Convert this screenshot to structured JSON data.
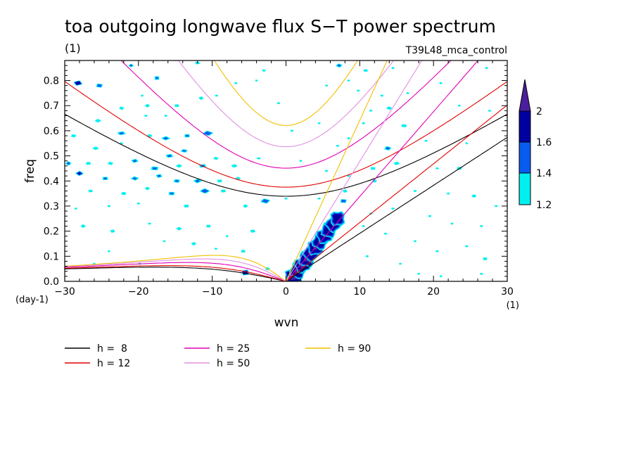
{
  "chart_data": {
    "type": "heatmap",
    "title": "toa outgoing longwave flux S−T power spectrum",
    "subtitle_left": "(1)",
    "subtitle_right": "T39L48_mca_control",
    "xlabel": "wvn",
    "ylabel": "freq",
    "x_unit_label": "(1)",
    "y_unit_label": "(day-1)",
    "xlim": [
      -30,
      30
    ],
    "ylim": [
      0,
      0.88
    ],
    "x_ticks": [
      -30,
      -20,
      -10,
      0,
      10,
      20,
      30
    ],
    "x_tick_labels": [
      "−30",
      "−20",
      "−10",
      "0",
      "10",
      "20",
      "30"
    ],
    "y_ticks": [
      0.0,
      0.1,
      0.2,
      0.3,
      0.4,
      0.5,
      0.6,
      0.7,
      0.8
    ],
    "y_tick_labels": [
      "0.0",
      "0.1",
      "0.2",
      "0.3",
      "0.4",
      "0.5",
      "0.6",
      "0.7",
      "0.8"
    ],
    "colorbar": {
      "levels": [
        1.2,
        1.4,
        1.6,
        2
      ],
      "level_labels": [
        "1.2",
        "1.4",
        "1.6",
        "2"
      ],
      "colors": [
        "#00f0f0",
        "#0a5cf0",
        "#0000a0",
        "#4b1e9e"
      ]
    },
    "dispersion_curves": {
      "equivalent_depths": [
        8,
        12,
        25,
        50,
        90
      ],
      "colors": [
        "#000000",
        "#e00000",
        "#e000b4",
        "#e090e0",
        "#f0c000"
      ],
      "legend": [
        "h =  8",
        "h = 12",
        "h = 25",
        "h = 50",
        "h = 90"
      ]
    },
    "kelvin_region": {
      "x_range": [
        1,
        7
      ],
      "freq_range": [
        0.02,
        0.25
      ],
      "peak_value": 2.2
    },
    "blobs": [
      [
        -28.2,
        0.79,
        0.9,
        0.016,
        1.9
      ],
      [
        -25.3,
        0.78,
        0.9,
        0.016,
        1.6
      ],
      [
        -21.0,
        0.86,
        0.7,
        0.014,
        1.5
      ],
      [
        -17.5,
        0.81,
        0.8,
        0.018,
        1.5
      ],
      [
        -19.5,
        0.74,
        0.7,
        0.014,
        1.3
      ],
      [
        -12.0,
        0.87,
        0.9,
        0.014,
        1.4
      ],
      [
        -22.3,
        0.69,
        0.8,
        0.016,
        1.4
      ],
      [
        -18.8,
        0.7,
        0.8,
        0.016,
        1.4
      ],
      [
        -14.8,
        0.7,
        0.8,
        0.016,
        1.4
      ],
      [
        -25.5,
        0.64,
        1.0,
        0.016,
        1.4
      ],
      [
        -19.0,
        0.66,
        0.8,
        0.014,
        1.3
      ],
      [
        -16.3,
        0.66,
        0.8,
        0.014,
        1.3
      ],
      [
        -11.5,
        0.73,
        0.8,
        0.016,
        1.4
      ],
      [
        -9.4,
        0.74,
        0.8,
        0.014,
        1.3
      ],
      [
        -6.8,
        0.79,
        0.8,
        0.014,
        1.3
      ],
      [
        -4.0,
        0.8,
        0.7,
        0.014,
        1.3
      ],
      [
        -28.8,
        0.58,
        0.9,
        0.016,
        1.4
      ],
      [
        -22.3,
        0.59,
        1.2,
        0.016,
        1.5
      ],
      [
        -18.5,
        0.58,
        0.9,
        0.016,
        1.4
      ],
      [
        -16.3,
        0.57,
        1.2,
        0.016,
        1.5
      ],
      [
        -13.4,
        0.58,
        0.9,
        0.016,
        1.5
      ],
      [
        -10.6,
        0.59,
        1.3,
        0.018,
        1.6
      ],
      [
        -15.8,
        0.5,
        1.1,
        0.016,
        1.5
      ],
      [
        -13.8,
        0.52,
        1.0,
        0.014,
        1.5
      ],
      [
        -25.8,
        0.53,
        1.0,
        0.016,
        1.4
      ],
      [
        -22.3,
        0.55,
        0.8,
        0.014,
        1.3
      ],
      [
        -29.5,
        0.47,
        0.8,
        0.018,
        1.5
      ],
      [
        -26.8,
        0.47,
        0.9,
        0.016,
        1.4
      ],
      [
        -23.8,
        0.47,
        0.9,
        0.016,
        1.4
      ],
      [
        -20.5,
        0.48,
        1.0,
        0.016,
        1.5
      ],
      [
        -17.8,
        0.45,
        1.2,
        0.018,
        1.5
      ],
      [
        -14.5,
        0.46,
        1.0,
        0.016,
        1.4
      ],
      [
        -11.3,
        0.46,
        1.1,
        0.016,
        1.5
      ],
      [
        -9.5,
        0.49,
        0.9,
        0.014,
        1.4
      ],
      [
        -7.0,
        0.46,
        1.0,
        0.016,
        1.4
      ],
      [
        -3.7,
        0.49,
        1.0,
        0.014,
        1.3
      ],
      [
        -28.0,
        0.43,
        0.9,
        0.016,
        1.7
      ],
      [
        -24.5,
        0.41,
        0.9,
        0.016,
        1.5
      ],
      [
        -20.5,
        0.41,
        1.1,
        0.016,
        1.5
      ],
      [
        -17.2,
        0.42,
        0.9,
        0.016,
        1.5
      ],
      [
        -14.8,
        0.4,
        1.0,
        0.016,
        1.5
      ],
      [
        -12.0,
        0.4,
        1.1,
        0.018,
        1.5
      ],
      [
        -9.0,
        0.4,
        0.9,
        0.016,
        1.4
      ],
      [
        -6.5,
        0.41,
        0.8,
        0.016,
        1.4
      ],
      [
        -26.5,
        0.36,
        0.8,
        0.014,
        1.4
      ],
      [
        -22.0,
        0.35,
        0.9,
        0.016,
        1.4
      ],
      [
        -18.8,
        0.37,
        0.8,
        0.016,
        1.4
      ],
      [
        -15.5,
        0.35,
        1.0,
        0.016,
        1.5
      ],
      [
        -11.0,
        0.36,
        1.2,
        0.018,
        1.6
      ],
      [
        -8.5,
        0.36,
        0.9,
        0.016,
        1.4
      ],
      [
        -2.8,
        0.32,
        1.2,
        0.018,
        1.6
      ],
      [
        -5.5,
        0.3,
        0.8,
        0.016,
        1.4
      ],
      [
        -24.0,
        0.3,
        0.8,
        0.014,
        1.3
      ],
      [
        -20.0,
        0.31,
        0.8,
        0.014,
        1.3
      ],
      [
        -13.5,
        0.3,
        0.9,
        0.016,
        1.4
      ],
      [
        -27.5,
        0.22,
        0.8,
        0.016,
        1.4
      ],
      [
        -23.5,
        0.2,
        0.8,
        0.016,
        1.4
      ],
      [
        -18.5,
        0.23,
        0.8,
        0.014,
        1.3
      ],
      [
        -14.5,
        0.21,
        0.9,
        0.016,
        1.4
      ],
      [
        -10.5,
        0.22,
        0.8,
        0.016,
        1.4
      ],
      [
        -8.0,
        0.18,
        0.7,
        0.014,
        1.3
      ],
      [
        -4.5,
        0.2,
        0.9,
        0.016,
        1.4
      ],
      [
        -16.5,
        0.16,
        0.7,
        0.014,
        1.3
      ],
      [
        -12.5,
        0.15,
        0.8,
        0.016,
        1.4
      ],
      [
        -5.8,
        0.12,
        0.8,
        0.016,
        1.4
      ],
      [
        -9.5,
        0.13,
        0.7,
        0.014,
        1.3
      ],
      [
        -5.5,
        0.035,
        0.9,
        0.02,
        1.8
      ],
      [
        -2.5,
        0.05,
        0.8,
        0.016,
        1.4
      ],
      [
        -19.8,
        0.07,
        0.7,
        0.014,
        1.3
      ],
      [
        -26.0,
        0.07,
        0.7,
        0.014,
        1.3
      ],
      [
        -24.0,
        0.12,
        0.7,
        0.014,
        1.3
      ],
      [
        -28.5,
        0.29,
        0.7,
        0.014,
        1.3
      ],
      [
        -3.0,
        0.84,
        0.9,
        0.016,
        1.3
      ],
      [
        -1.0,
        0.71,
        0.8,
        0.014,
        1.3
      ],
      [
        0.8,
        0.6,
        0.8,
        0.014,
        1.3
      ],
      [
        2.0,
        0.48,
        0.7,
        0.014,
        1.3
      ],
      [
        0.0,
        0.33,
        0.8,
        0.014,
        1.3
      ],
      [
        7.2,
        0.86,
        0.9,
        0.016,
        1.5
      ],
      [
        10.8,
        0.84,
        0.8,
        0.014,
        1.4
      ],
      [
        8.5,
        0.8,
        0.7,
        0.014,
        1.3
      ],
      [
        14.5,
        0.85,
        0.8,
        0.014,
        1.3
      ],
      [
        5.5,
        0.78,
        0.7,
        0.014,
        1.3
      ],
      [
        9.8,
        0.76,
        0.8,
        0.014,
        1.3
      ],
      [
        13.0,
        0.74,
        0.8,
        0.014,
        1.3
      ],
      [
        16.5,
        0.75,
        0.7,
        0.014,
        1.3
      ],
      [
        21.0,
        0.79,
        0.8,
        0.014,
        1.3
      ],
      [
        23.5,
        0.7,
        0.7,
        0.014,
        1.3
      ],
      [
        27.2,
        0.85,
        0.8,
        0.014,
        1.3
      ],
      [
        27.6,
        0.68,
        0.8,
        0.014,
        1.3
      ],
      [
        14.0,
        0.69,
        0.9,
        0.016,
        1.4
      ],
      [
        11.5,
        0.68,
        0.8,
        0.014,
        1.3
      ],
      [
        16.0,
        0.62,
        1.0,
        0.016,
        1.4
      ],
      [
        10.5,
        0.63,
        0.8,
        0.014,
        1.3
      ],
      [
        4.5,
        0.63,
        0.7,
        0.014,
        1.3
      ],
      [
        8.5,
        0.57,
        0.8,
        0.014,
        1.3
      ],
      [
        7.0,
        0.54,
        0.8,
        0.014,
        1.3
      ],
      [
        13.8,
        0.53,
        1.0,
        0.018,
        1.5
      ],
      [
        15.0,
        0.47,
        1.0,
        0.016,
        1.4
      ],
      [
        11.8,
        0.45,
        0.9,
        0.016,
        1.4
      ],
      [
        12.0,
        0.4,
        0.8,
        0.016,
        1.4
      ],
      [
        8.5,
        0.42,
        0.8,
        0.014,
        1.3
      ],
      [
        5.5,
        0.44,
        0.8,
        0.014,
        1.3
      ],
      [
        8.0,
        0.36,
        0.8,
        0.016,
        1.4
      ],
      [
        7.8,
        0.32,
        0.9,
        0.016,
        1.6
      ],
      [
        4.5,
        0.33,
        0.8,
        0.014,
        1.3
      ],
      [
        11.5,
        0.27,
        0.8,
        0.014,
        1.3
      ],
      [
        19.0,
        0.56,
        0.8,
        0.014,
        1.3
      ],
      [
        20.5,
        0.45,
        0.8,
        0.014,
        1.3
      ],
      [
        23.5,
        0.45,
        0.9,
        0.016,
        1.4
      ],
      [
        24.5,
        0.55,
        0.7,
        0.014,
        1.3
      ],
      [
        17.5,
        0.36,
        0.8,
        0.014,
        1.3
      ],
      [
        22.0,
        0.35,
        0.8,
        0.014,
        1.3
      ],
      [
        25.5,
        0.34,
        0.8,
        0.016,
        1.4
      ],
      [
        28.5,
        0.3,
        0.8,
        0.014,
        1.3
      ],
      [
        14.5,
        0.29,
        0.8,
        0.014,
        1.3
      ],
      [
        19.5,
        0.26,
        0.8,
        0.014,
        1.3
      ],
      [
        22.5,
        0.23,
        0.7,
        0.014,
        1.3
      ],
      [
        26.5,
        0.22,
        0.8,
        0.014,
        1.3
      ],
      [
        13.5,
        0.19,
        0.8,
        0.014,
        1.3
      ],
      [
        17.5,
        0.16,
        0.7,
        0.014,
        1.3
      ],
      [
        20.5,
        0.12,
        0.8,
        0.014,
        1.3
      ],
      [
        24.5,
        0.14,
        0.8,
        0.014,
        1.3
      ],
      [
        27.0,
        0.09,
        0.8,
        0.016,
        1.4
      ],
      [
        11.0,
        0.1,
        0.8,
        0.014,
        1.3
      ],
      [
        15.5,
        0.07,
        0.7,
        0.014,
        1.3
      ],
      [
        26.5,
        0.03,
        0.8,
        0.014,
        1.3
      ],
      [
        18.0,
        0.03,
        0.7,
        0.014,
        1.3
      ],
      [
        10.5,
        0.22,
        0.8,
        0.014,
        1.3
      ],
      [
        21.0,
        0.02,
        0.7,
        0.014,
        1.3
      ]
    ]
  }
}
